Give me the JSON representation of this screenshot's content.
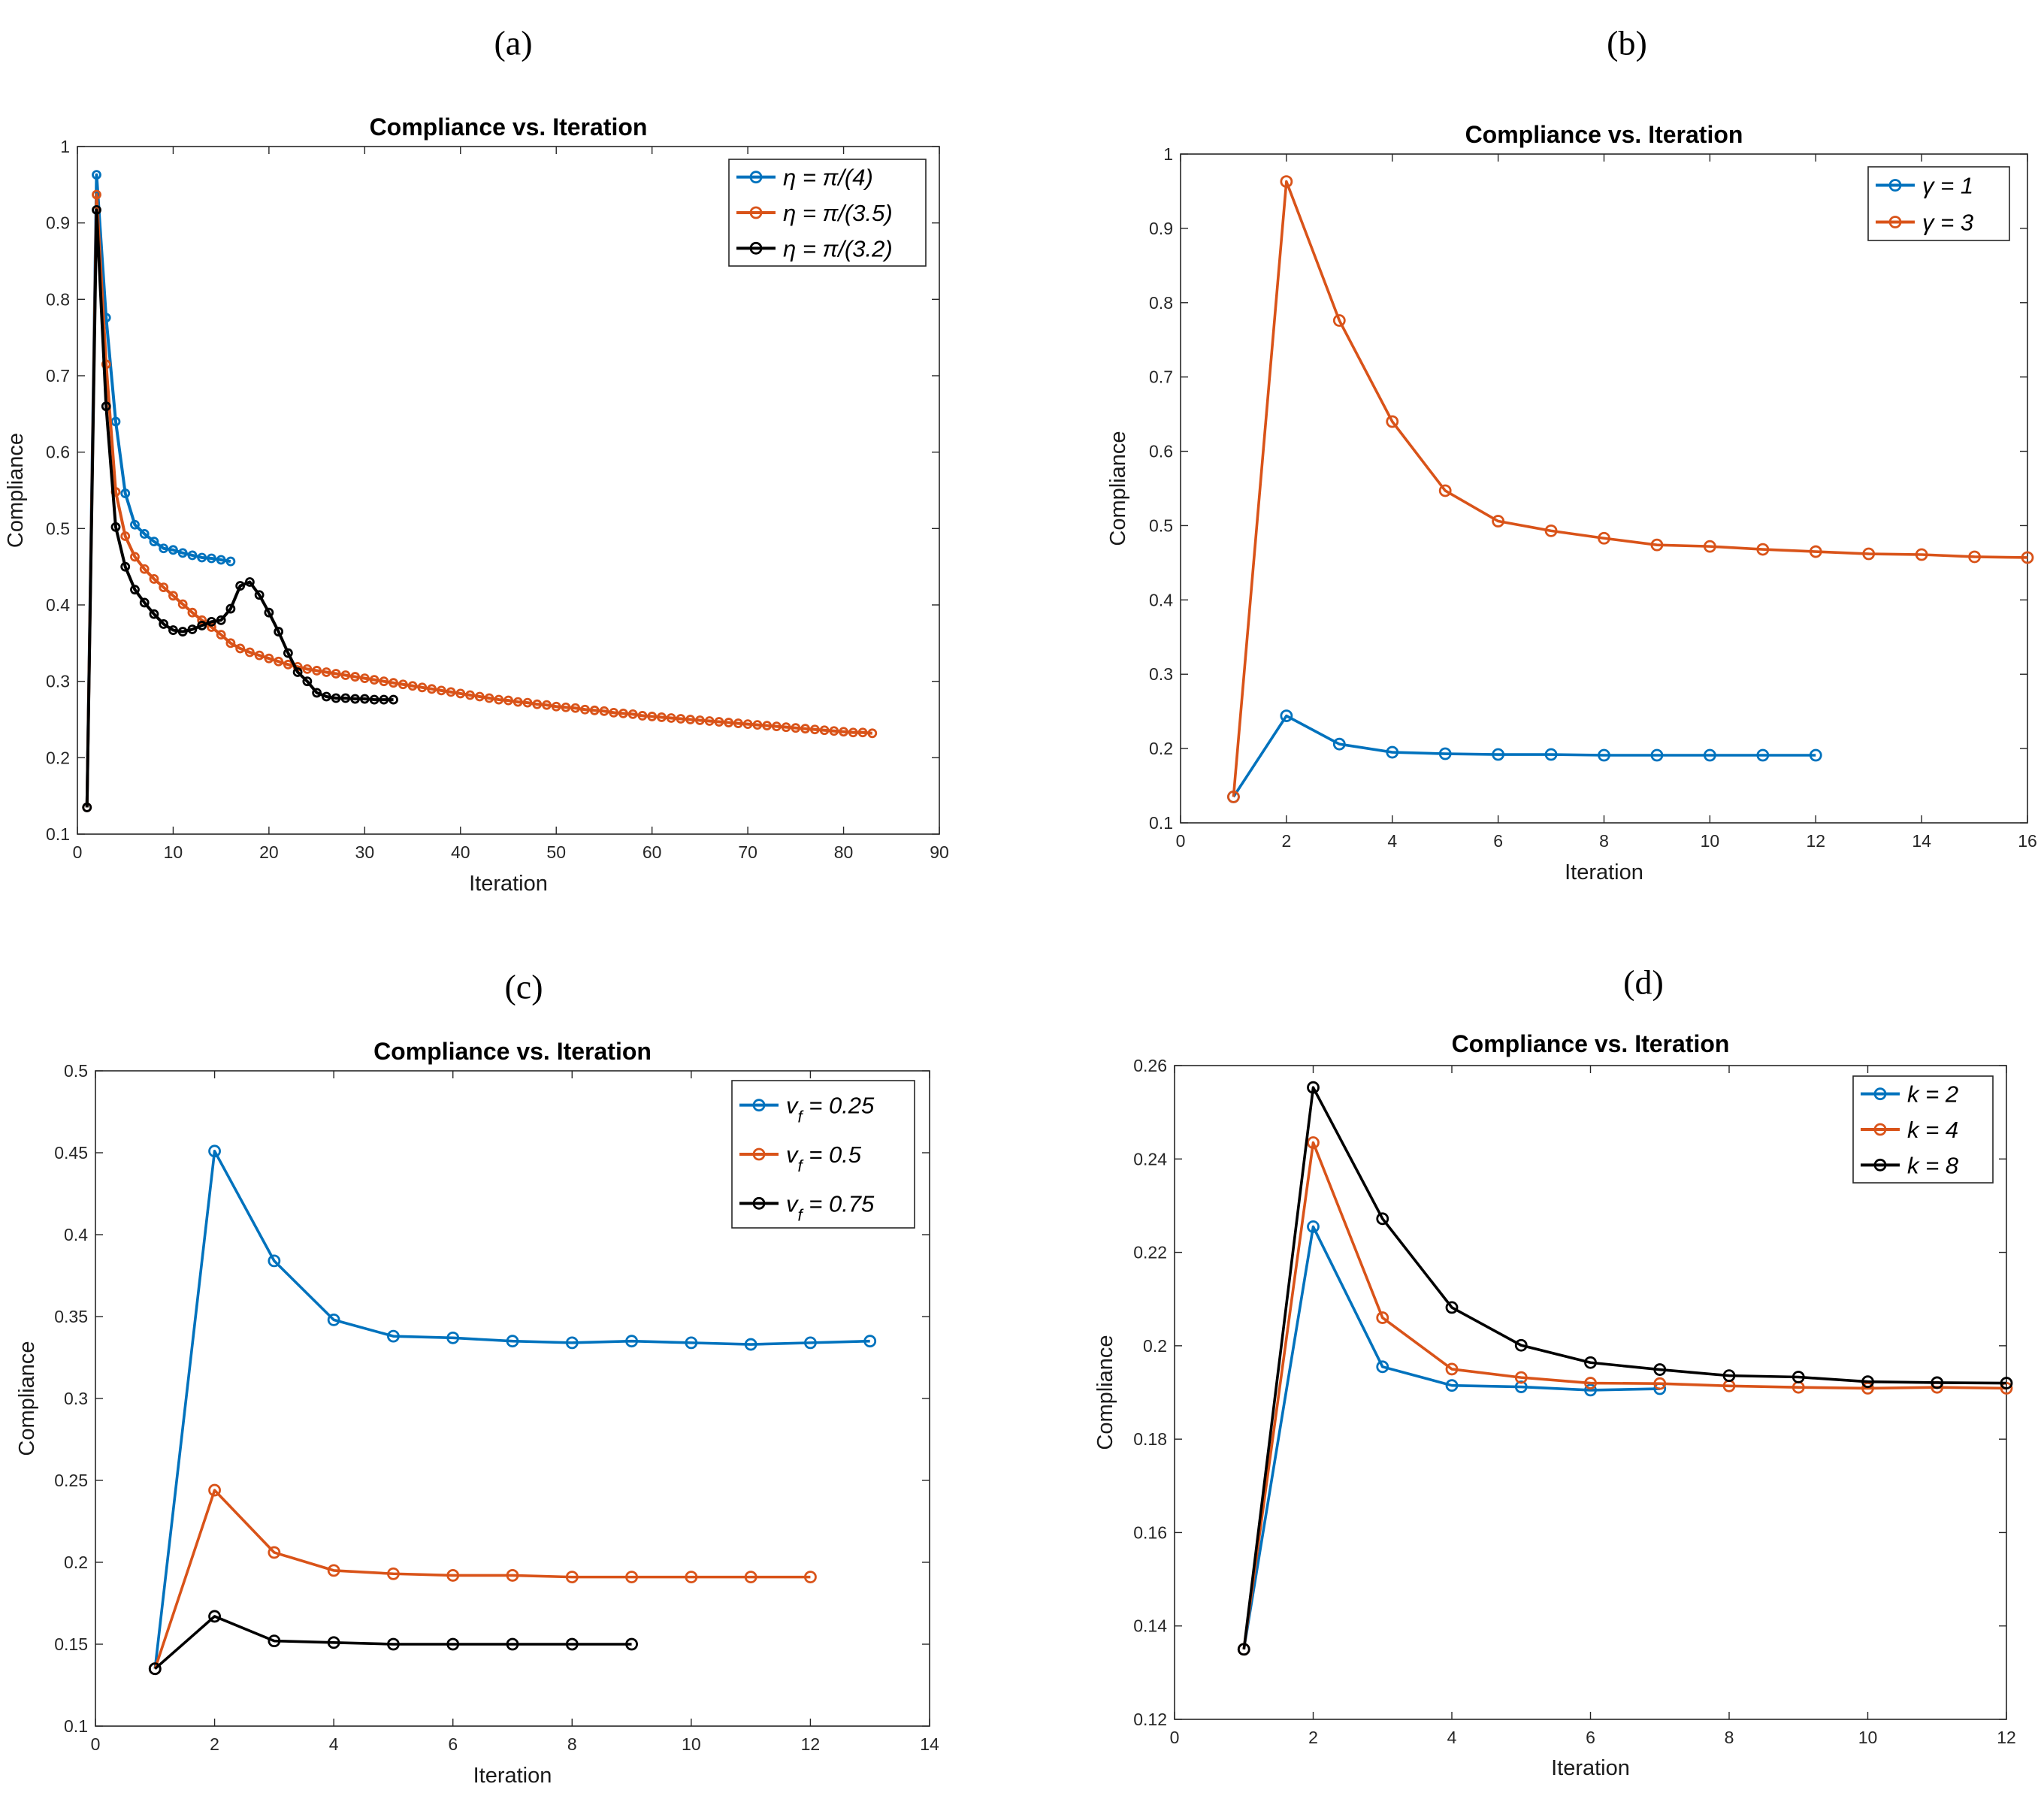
{
  "chart_data": [
    {
      "panel": "(a)",
      "type": "line",
      "title": "Compliance vs. Iteration",
      "xlabel": "Iteration",
      "ylabel": "Compliance",
      "xlim": [
        0,
        90
      ],
      "ylim": [
        0.1,
        1
      ],
      "xticks": [
        0,
        10,
        20,
        30,
        40,
        50,
        60,
        70,
        80,
        90
      ],
      "yticks": [
        0.1,
        0.2,
        0.3,
        0.4,
        0.5,
        0.6,
        0.7,
        0.8,
        0.9,
        1
      ],
      "ytick_labels": [
        "0.1",
        "0.2",
        "0.3",
        "0.4",
        "0.5",
        "0.6",
        "0.7",
        "0.8",
        "0.9",
        "1"
      ],
      "legend_location": "top-right",
      "series": [
        {
          "name": "η = π/(4)",
          "color": "#0072BD",
          "x": [
            1,
            2,
            3,
            4,
            5,
            6,
            7,
            8,
            9,
            10,
            11,
            12,
            13,
            14,
            15,
            16
          ],
          "values": [
            0.135,
            0.963,
            0.776,
            0.64,
            0.546,
            0.505,
            0.493,
            0.483,
            0.474,
            0.472,
            0.468,
            0.465,
            0.462,
            0.461,
            0.459,
            0.457
          ]
        },
        {
          "name": "η = π/(3.5)",
          "color": "#D95319",
          "x": [
            1,
            2,
            3,
            4,
            5,
            6,
            7,
            8,
            9,
            10,
            11,
            12,
            13,
            14,
            15,
            16,
            17,
            18,
            19,
            20,
            21,
            22,
            23,
            24,
            25,
            26,
            27,
            28,
            29,
            30,
            31,
            32,
            33,
            34,
            35,
            36,
            37,
            38,
            39,
            40,
            41,
            42,
            43,
            44,
            45,
            46,
            47,
            48,
            49,
            50,
            51,
            52,
            53,
            54,
            55,
            56,
            57,
            58,
            59,
            60,
            61,
            62,
            63,
            64,
            65,
            66,
            67,
            68,
            69,
            70,
            71,
            72,
            73,
            74,
            75,
            76,
            77,
            78,
            79,
            80,
            81,
            82,
            83
          ],
          "values": [
            0.135,
            0.937,
            0.715,
            0.548,
            0.49,
            0.463,
            0.447,
            0.434,
            0.423,
            0.412,
            0.401,
            0.39,
            0.38,
            0.371,
            0.361,
            0.35,
            0.343,
            0.338,
            0.334,
            0.33,
            0.326,
            0.322,
            0.319,
            0.316,
            0.314,
            0.312,
            0.31,
            0.308,
            0.306,
            0.304,
            0.302,
            0.3,
            0.298,
            0.296,
            0.294,
            0.292,
            0.29,
            0.288,
            0.286,
            0.284,
            0.282,
            0.28,
            0.278,
            0.276,
            0.275,
            0.273,
            0.272,
            0.27,
            0.269,
            0.267,
            0.266,
            0.265,
            0.263,
            0.262,
            0.261,
            0.259,
            0.258,
            0.257,
            0.255,
            0.254,
            0.253,
            0.252,
            0.251,
            0.25,
            0.249,
            0.248,
            0.247,
            0.246,
            0.245,
            0.244,
            0.243,
            0.242,
            0.241,
            0.24,
            0.239,
            0.238,
            0.237,
            0.236,
            0.235,
            0.234,
            0.233,
            0.233,
            0.232
          ]
        },
        {
          "name": "η = π/(3.2)",
          "color": "#000000",
          "x": [
            1,
            2,
            3,
            4,
            5,
            6,
            7,
            8,
            9,
            10,
            11,
            12,
            13,
            14,
            15,
            16,
            17,
            18,
            19,
            20,
            21,
            22,
            23,
            24,
            25,
            26,
            27,
            28,
            29,
            30,
            31,
            32,
            33
          ],
          "values": [
            0.135,
            0.917,
            0.66,
            0.502,
            0.45,
            0.42,
            0.403,
            0.388,
            0.375,
            0.367,
            0.365,
            0.368,
            0.373,
            0.378,
            0.38,
            0.395,
            0.425,
            0.43,
            0.413,
            0.39,
            0.365,
            0.337,
            0.312,
            0.3,
            0.285,
            0.28,
            0.278,
            0.278,
            0.277,
            0.277,
            0.276,
            0.276,
            0.276
          ]
        }
      ]
    },
    {
      "panel": "(b)",
      "type": "line",
      "title": "Compliance vs. Iteration",
      "xlabel": "Iteration",
      "ylabel": "Compliance",
      "xlim": [
        0,
        16
      ],
      "ylim": [
        0.1,
        1
      ],
      "xticks": [
        0,
        2,
        4,
        6,
        8,
        10,
        12,
        14,
        16
      ],
      "yticks": [
        0.1,
        0.2,
        0.3,
        0.4,
        0.5,
        0.6,
        0.7,
        0.8,
        0.9,
        1
      ],
      "ytick_labels": [
        "0.1",
        "0.2",
        "0.3",
        "0.4",
        "0.5",
        "0.6",
        "0.7",
        "0.8",
        "0.9",
        "1"
      ],
      "legend_location": "top-right",
      "series": [
        {
          "name": "γ = 1",
          "color": "#0072BD",
          "x": [
            1,
            2,
            3,
            4,
            5,
            6,
            7,
            8,
            9,
            10,
            11,
            12
          ],
          "values": [
            0.135,
            0.244,
            0.206,
            0.195,
            0.193,
            0.192,
            0.192,
            0.191,
            0.191,
            0.191,
            0.191,
            0.191
          ]
        },
        {
          "name": "γ = 3",
          "color": "#D95319",
          "x": [
            1,
            2,
            3,
            4,
            5,
            6,
            7,
            8,
            9,
            10,
            11,
            12,
            13,
            14,
            15,
            16
          ],
          "values": [
            0.135,
            0.963,
            0.776,
            0.64,
            0.547,
            0.506,
            0.493,
            0.483,
            0.474,
            0.472,
            0.468,
            0.465,
            0.462,
            0.461,
            0.458,
            0.457
          ]
        }
      ]
    },
    {
      "panel": "(c)",
      "type": "line",
      "title": "Compliance vs. Iteration",
      "xlabel": "Iteration",
      "ylabel": "Compliance",
      "xlim": [
        0,
        14
      ],
      "ylim": [
        0.1,
        0.5
      ],
      "xticks": [
        0,
        2,
        4,
        6,
        8,
        10,
        12,
        14
      ],
      "yticks": [
        0.1,
        0.15,
        0.2,
        0.25,
        0.3,
        0.35,
        0.4,
        0.45,
        0.5
      ],
      "ytick_labels": [
        "0.1",
        "0.15",
        "0.2",
        "0.25",
        "0.3",
        "0.35",
        "0.4",
        "0.45",
        "0.5"
      ],
      "legend_location": "top-right",
      "series": [
        {
          "name": "v",
          "subscript": "f",
          "suffix": " = 0.25",
          "color": "#0072BD",
          "x": [
            1,
            2,
            3,
            4,
            5,
            6,
            7,
            8,
            9,
            10,
            11,
            12,
            13
          ],
          "values": [
            0.135,
            0.451,
            0.384,
            0.348,
            0.338,
            0.337,
            0.335,
            0.334,
            0.335,
            0.334,
            0.333,
            0.334,
            0.335
          ]
        },
        {
          "name": "v",
          "subscript": "f",
          "suffix": " = 0.5",
          "color": "#D95319",
          "x": [
            1,
            2,
            3,
            4,
            5,
            6,
            7,
            8,
            9,
            10,
            11,
            12
          ],
          "values": [
            0.135,
            0.244,
            0.206,
            0.195,
            0.193,
            0.192,
            0.192,
            0.191,
            0.191,
            0.191,
            0.191,
            0.191
          ]
        },
        {
          "name": "v",
          "subscript": "f",
          "suffix": " = 0.75",
          "color": "#000000",
          "x": [
            1,
            2,
            3,
            4,
            5,
            6,
            7,
            8,
            9
          ],
          "values": [
            0.135,
            0.167,
            0.152,
            0.151,
            0.15,
            0.15,
            0.15,
            0.15,
            0.15
          ]
        }
      ]
    },
    {
      "panel": "(d)",
      "type": "line",
      "title": "Compliance vs. Iteration",
      "xlabel": "Iteration",
      "ylabel": "Compliance",
      "xlim": [
        0,
        12
      ],
      "ylim": [
        0.12,
        0.26
      ],
      "xticks": [
        0,
        2,
        4,
        6,
        8,
        10,
        12
      ],
      "yticks": [
        0.12,
        0.14,
        0.16,
        0.18,
        0.2,
        0.22,
        0.24,
        0.26
      ],
      "ytick_labels": [
        "0.12",
        "0.14",
        "0.16",
        "0.18",
        "0.2",
        "0.22",
        "0.24",
        "0.26"
      ],
      "legend_location": "top-right",
      "series": [
        {
          "name": "k = 2",
          "color": "#0072BD",
          "x": [
            1,
            2,
            3,
            4,
            5,
            6,
            7
          ],
          "values": [
            0.135,
            0.2255,
            0.1955,
            0.1915,
            0.1912,
            0.1905,
            0.1908
          ]
        },
        {
          "name": "k = 4",
          "color": "#D95319",
          "x": [
            1,
            2,
            3,
            4,
            5,
            6,
            7,
            8,
            9,
            10,
            11,
            12
          ],
          "values": [
            0.135,
            0.2435,
            0.206,
            0.195,
            0.1932,
            0.192,
            0.1919,
            0.1914,
            0.1911,
            0.1909,
            0.1911,
            0.1909
          ]
        },
        {
          "name": "k = 8",
          "color": "#000000",
          "x": [
            1,
            2,
            3,
            4,
            5,
            6,
            7,
            8,
            9,
            10,
            11,
            12
          ],
          "values": [
            0.135,
            0.2553,
            0.2272,
            0.2082,
            0.2001,
            0.1964,
            0.1949,
            0.1936,
            0.1933,
            0.1923,
            0.1921,
            0.192
          ]
        }
      ]
    }
  ]
}
